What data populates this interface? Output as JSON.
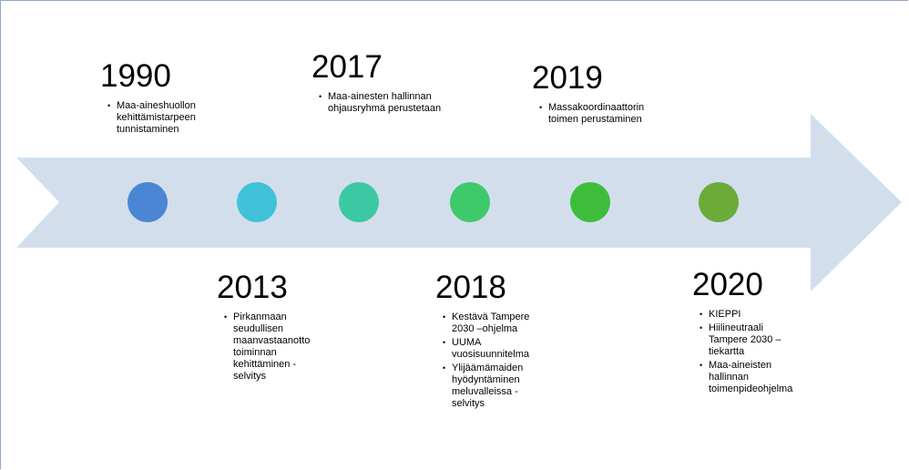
{
  "events": [
    {
      "year": "1990",
      "bullets": [
        "Maa-aineshuollon kehittämistarpeen tunnistaminen"
      ]
    },
    {
      "year": "2013",
      "bullets": [
        "Pirkanmaan seudullisen maanvastaanotto toiminnan kehittäminen - selvitys"
      ]
    },
    {
      "year": "2017",
      "bullets": [
        "Maa-ainesten hallinnan  ohjausryhmä perustetaan"
      ]
    },
    {
      "year": "2018",
      "bullets": [
        "Kestävä Tampere 2030 –ohjelma",
        "UUMA vuosisuunnitelma",
        "Ylijäämämaiden hyödyntäminen meluvalleissa - selvitys"
      ]
    },
    {
      "year": "2019",
      "bullets": [
        "Massakoordinaattorin toimen perustaminen"
      ]
    },
    {
      "year": "2020",
      "bullets": [
        "KIEPPI",
        "Hiilineutraali Tampere 2030 – tiekartta",
        "Maa-aineisten hallinnan toimenpideohjelma"
      ]
    }
  ]
}
